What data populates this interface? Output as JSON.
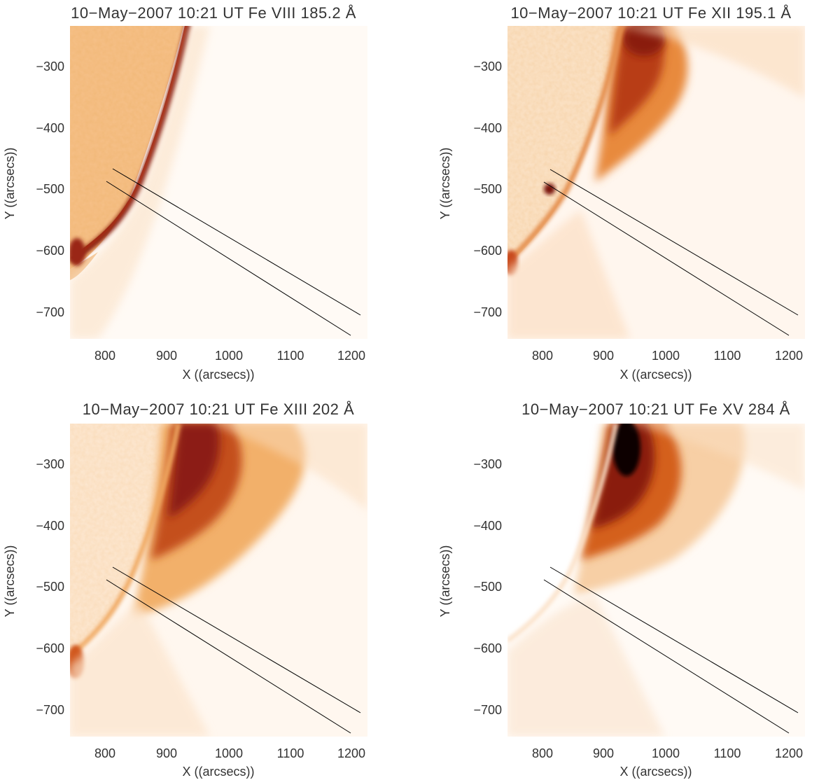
{
  "panels": [
    {
      "title": "10−May−2007 10:21 UT Fe VIII 185.2 Å",
      "xlabel": "X ((arcsecs))",
      "ylabel": "Y ((arcsecs))",
      "xticks": [
        "800",
        "900",
        "1000",
        "1100",
        "1200"
      ],
      "yticks": [
        "−300",
        "−400",
        "−500",
        "−600",
        "−700"
      ],
      "xrange": [
        743,
        1225
      ],
      "yrange": [
        -745,
        -235
      ],
      "intensity_level": 0.55,
      "colormap": [
        "#ffffff",
        "#fbd9ae",
        "#f2a24f",
        "#c4531a",
        "#7a1010",
        "#1a0000"
      ]
    },
    {
      "title": "10−May−2007 10:21 UT Fe XII 195.1 Å",
      "xlabel": "X ((arcsecs))",
      "ylabel": "Y ((arcsecs))",
      "xticks": [
        "800",
        "900",
        "1000",
        "1100",
        "1200"
      ],
      "yticks": [
        "−300",
        "−400",
        "−500",
        "−600",
        "−700"
      ],
      "xrange": [
        743,
        1225
      ],
      "yrange": [
        -745,
        -235
      ],
      "intensity_level": 0.55,
      "colormap": [
        "#ffffff",
        "#fbd9ae",
        "#f2a24f",
        "#c4531a",
        "#7a1010",
        "#1a0000"
      ]
    },
    {
      "title": "10−May−2007 10:21 UT Fe XIII 202 Å",
      "xlabel": "X ((arcsecs))",
      "ylabel": "Y ((arcsecs))",
      "xticks": [
        "800",
        "900",
        "1000",
        "1100",
        "1200"
      ],
      "yticks": [
        "−300",
        "−400",
        "−500",
        "−600",
        "−700"
      ],
      "xrange": [
        743,
        1225
      ],
      "yrange": [
        -745,
        -235
      ],
      "intensity_level": 0.7,
      "colormap": [
        "#ffffff",
        "#fbd9ae",
        "#f2a24f",
        "#c4531a",
        "#7a1010",
        "#1a0000"
      ]
    },
    {
      "title": "10−May−2007 10:21 UT Fe XV 284 Å",
      "xlabel": "X ((arcsecs))",
      "ylabel": "Y ((arcsecs))",
      "xticks": [
        "800",
        "900",
        "1000",
        "1100",
        "1200"
      ],
      "yticks": [
        "−300",
        "−400",
        "−500",
        "−600",
        "−700"
      ],
      "xrange": [
        743,
        1225
      ],
      "yrange": [
        -745,
        -235
      ],
      "intensity_level": 0.85,
      "colormap": [
        "#ffffff",
        "#fbd9ae",
        "#f2a24f",
        "#c4531a",
        "#7a1010",
        "#1a0000"
      ]
    }
  ],
  "slit_lines": [
    {
      "x1": 812,
      "y1": -470,
      "x2": 1215,
      "y2": -708
    },
    {
      "x1": 802,
      "y1": -490,
      "x2": 1200,
      "y2": -740
    }
  ]
}
